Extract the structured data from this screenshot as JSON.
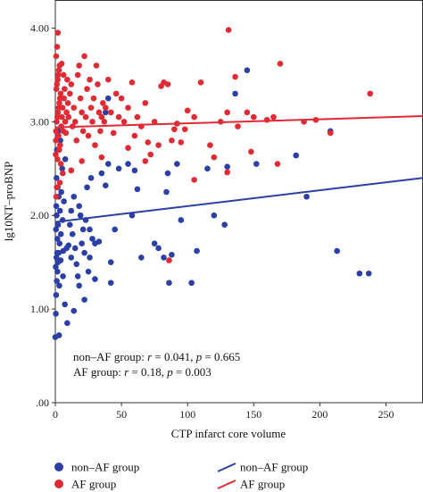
{
  "chart_data": {
    "type": "scatter",
    "xlabel": "CTP infarct core volume",
    "ylabel": "lg10NT–proBNP",
    "xlim": [
      0,
      278
    ],
    "ylim": [
      0,
      4.3
    ],
    "x_ticks": [
      0,
      50,
      100,
      150,
      200,
      250
    ],
    "x_tick_labels": [
      "0",
      "50",
      "100",
      "150",
      "200",
      "250"
    ],
    "y_ticks": [
      0,
      1,
      2,
      3,
      4
    ],
    "y_tick_labels": [
      ".00",
      "1.00",
      "2.00",
      "3.00",
      "4.00"
    ],
    "grid": false,
    "legend_position": "bottom",
    "colors": {
      "non_af": "#2b3fa6",
      "af": "#e02b35"
    },
    "annotations": [
      [
        "non–AF group: ",
        "r",
        " = 0.041, ",
        "p",
        " = 0.665"
      ],
      [
        "AF group: ",
        "r",
        " = 0.18, ",
        "p",
        " = 0.003"
      ]
    ],
    "legend": {
      "points": [
        {
          "key": "non_af",
          "label": "non–AF group"
        },
        {
          "key": "af",
          "label": "AF group"
        }
      ],
      "lines": [
        {
          "key": "non_af",
          "label": "non–AF group"
        },
        {
          "key": "af",
          "label": "AF group"
        }
      ]
    },
    "series": [
      {
        "key": "non_af",
        "points": [
          [
            0.4,
            0.95
          ],
          [
            0.6,
            1.15
          ],
          [
            1.1,
            1.3
          ],
          [
            1.6,
            1.4
          ],
          [
            2.0,
            1.5
          ],
          [
            0.8,
            1.55
          ],
          [
            2.6,
            1.6
          ],
          [
            3.2,
            1.7
          ],
          [
            1.5,
            1.75
          ],
          [
            4.2,
            1.8
          ],
          [
            0.5,
            1.85
          ],
          [
            2.1,
            1.9
          ],
          [
            5.5,
            1.95
          ],
          [
            1.0,
            2.0
          ],
          [
            3.5,
            2.05
          ],
          [
            0.7,
            2.1
          ],
          [
            6.5,
            2.15
          ],
          [
            2.5,
            2.2
          ],
          [
            4.5,
            2.25
          ],
          [
            1.8,
            2.3
          ],
          [
            0.9,
            2.4
          ],
          [
            5.2,
            2.5
          ],
          [
            7.5,
            2.6
          ],
          [
            1.2,
            2.7
          ],
          [
            3.8,
            2.8
          ],
          [
            2.2,
            2.9
          ],
          [
            0.3,
            1.45
          ],
          [
            1.4,
            1.6
          ],
          [
            6.0,
            1.62
          ],
          [
            8.5,
            1.65
          ],
          [
            10.0,
            1.68
          ],
          [
            4.0,
            1.52
          ],
          [
            5.8,
            1.35
          ],
          [
            3.0,
            1.25
          ],
          [
            7.2,
            1.05
          ],
          [
            9.0,
            0.85
          ],
          [
            2.8,
            0.72
          ],
          [
            11,
            1.9
          ],
          [
            12,
            2.05
          ],
          [
            13,
            1.8
          ],
          [
            14,
            2.2
          ],
          [
            15,
            1.65
          ],
          [
            16,
            1.48
          ],
          [
            17,
            1.35
          ],
          [
            18,
            2.1
          ],
          [
            19,
            2.0
          ],
          [
            20,
            1.7
          ],
          [
            21,
            1.85
          ],
          [
            22,
            1.6
          ],
          [
            23,
            1.95
          ],
          [
            24,
            2.3
          ],
          [
            25,
            1.4
          ],
          [
            26,
            1.55
          ],
          [
            27,
            2.4
          ],
          [
            28,
            1.75
          ],
          [
            18,
            1.25
          ],
          [
            22,
            1.1
          ],
          [
            14,
            0.98
          ],
          [
            26,
            1.85
          ],
          [
            12,
            1.55
          ],
          [
            30,
            1.7
          ],
          [
            33,
            1.72
          ],
          [
            35,
            2.45
          ],
          [
            38,
            2.32
          ],
          [
            40,
            2.55
          ],
          [
            42,
            1.5
          ],
          [
            45,
            1.85
          ],
          [
            48,
            2.5
          ],
          [
            38,
            3.1
          ],
          [
            40,
            3.25
          ],
          [
            55,
            2.55
          ],
          [
            58,
            2.0
          ],
          [
            60,
            2.48
          ],
          [
            62,
            2.28
          ],
          [
            65,
            1.55
          ],
          [
            75,
            1.7
          ],
          [
            78,
            1.65
          ],
          [
            82,
            1.55
          ],
          [
            84,
            2.25
          ],
          [
            85,
            2.45
          ],
          [
            86,
            1.28
          ],
          [
            88,
            1.58
          ],
          [
            92,
            2.55
          ],
          [
            95,
            1.95
          ],
          [
            103,
            1.28
          ],
          [
            107,
            1.62
          ],
          [
            115,
            2.5
          ],
          [
            120,
            2.0
          ],
          [
            128,
            1.9
          ],
          [
            130,
            2.52
          ],
          [
            136,
            3.3
          ],
          [
            145,
            3.55
          ],
          [
            152,
            2.55
          ],
          [
            182,
            2.64
          ],
          [
            190,
            2.2
          ],
          [
            208,
            2.9
          ],
          [
            213,
            1.62
          ],
          [
            230,
            1.38
          ],
          [
            237,
            1.38
          ],
          [
            0,
            0.7
          ],
          [
            30,
            1.32
          ],
          [
            42,
            1.28
          ],
          [
            12,
            2.48
          ]
        ]
      },
      {
        "key": "af",
        "points": [
          [
            0.5,
            2.9
          ],
          [
            1.0,
            3.0
          ],
          [
            1.5,
            3.05
          ],
          [
            2.0,
            3.1
          ],
          [
            2.5,
            3.15
          ],
          [
            3.0,
            3.2
          ],
          [
            3.5,
            3.25
          ],
          [
            4.0,
            3.3
          ],
          [
            0.8,
            3.35
          ],
          [
            1.2,
            3.4
          ],
          [
            1.8,
            3.45
          ],
          [
            2.2,
            3.5
          ],
          [
            2.7,
            3.55
          ],
          [
            3.2,
            3.6
          ],
          [
            0.6,
            3.7
          ],
          [
            1.3,
            3.8
          ],
          [
            1.9,
            3.95
          ],
          [
            2.4,
            2.85
          ],
          [
            0.4,
            2.8
          ],
          [
            3.6,
            2.75
          ],
          [
            4.5,
            2.95
          ],
          [
            5.0,
            3.05
          ],
          [
            5.5,
            3.15
          ],
          [
            6.0,
            2.9
          ],
          [
            6.5,
            3.25
          ],
          [
            7.0,
            3.35
          ],
          [
            7.5,
            3.0
          ],
          [
            8.0,
            2.88
          ],
          [
            8.5,
            3.1
          ],
          [
            9.0,
            3.45
          ],
          [
            9.5,
            3.2
          ],
          [
            10.0,
            3.05
          ],
          [
            0.3,
            2.65
          ],
          [
            1.6,
            2.6
          ],
          [
            2.9,
            2.7
          ],
          [
            4.2,
            2.55
          ],
          [
            5.6,
            2.45
          ],
          [
            3.4,
            2.35
          ],
          [
            1.1,
            2.3
          ],
          [
            0.7,
            2.2
          ],
          [
            4.8,
            3.62
          ],
          [
            6.2,
            3.5
          ],
          [
            11,
            3.3
          ],
          [
            12,
            3.4
          ],
          [
            13,
            2.95
          ],
          [
            14,
            3.15
          ],
          [
            15,
            3.0
          ],
          [
            16,
            2.8
          ],
          [
            17,
            3.5
          ],
          [
            18,
            3.6
          ],
          [
            19,
            3.25
          ],
          [
            20,
            3.1
          ],
          [
            21,
            2.9
          ],
          [
            22,
            3.7
          ],
          [
            23,
            3.05
          ],
          [
            24,
            3.35
          ],
          [
            25,
            2.85
          ],
          [
            26,
            3.45
          ],
          [
            27,
            3.15
          ],
          [
            28,
            3.0
          ],
          [
            29,
            3.25
          ],
          [
            30,
            2.75
          ],
          [
            31,
            3.6
          ],
          [
            32,
            3.4
          ],
          [
            33,
            3.1
          ],
          [
            34,
            2.9
          ],
          [
            35,
            3.05
          ],
          [
            36,
            3.2
          ],
          [
            37,
            3.0
          ],
          [
            38,
            3.15
          ],
          [
            40,
            3.45
          ],
          [
            42,
            3.1
          ],
          [
            44,
            2.88
          ],
          [
            46,
            3.3
          ],
          [
            48,
            3.05
          ],
          [
            50,
            3.25
          ],
          [
            52,
            3.0
          ],
          [
            55,
            3.15
          ],
          [
            58,
            3.42
          ],
          [
            60,
            2.85
          ],
          [
            62,
            3.05
          ],
          [
            65,
            2.95
          ],
          [
            68,
            3.2
          ],
          [
            70,
            2.78
          ],
          [
            72,
            2.65
          ],
          [
            75,
            3.0
          ],
          [
            78,
            2.75
          ],
          [
            80,
            3.38
          ],
          [
            82,
            3.42
          ],
          [
            85,
            3.4
          ],
          [
            88,
            2.8
          ],
          [
            90,
            2.92
          ],
          [
            92,
            2.98
          ],
          [
            95,
            2.78
          ],
          [
            98,
            2.92
          ],
          [
            100,
            3.12
          ],
          [
            105,
            3.05
          ],
          [
            110,
            3.42
          ],
          [
            117,
            2.75
          ],
          [
            125,
            3.0
          ],
          [
            130,
            3.1
          ],
          [
            138,
            2.95
          ],
          [
            145,
            3.1
          ],
          [
            150,
            3.05
          ],
          [
            160,
            3.02
          ],
          [
            165,
            3.05
          ],
          [
            55,
            2.72
          ],
          [
            20,
            2.58
          ],
          [
            35,
            2.62
          ],
          [
            68,
            2.58
          ],
          [
            12,
            2.48
          ],
          [
            131,
            3.98
          ],
          [
            170,
            3.62
          ],
          [
            136,
            3.48
          ],
          [
            120,
            2.62
          ],
          [
            105,
            2.38
          ],
          [
            130,
            2.46
          ],
          [
            86,
            1.52
          ],
          [
            148,
            2.68
          ],
          [
            168,
            2.55
          ],
          [
            188,
            3.0
          ],
          [
            197,
            3.02
          ],
          [
            208,
            2.88
          ],
          [
            238,
            3.3
          ]
        ]
      }
    ],
    "regression_lines": [
      {
        "key": "non_af",
        "x": [
          0,
          278
        ],
        "y": [
          1.93,
          2.4
        ]
      },
      {
        "key": "af",
        "x": [
          0,
          278
        ],
        "y": [
          2.94,
          3.06
        ]
      }
    ]
  }
}
